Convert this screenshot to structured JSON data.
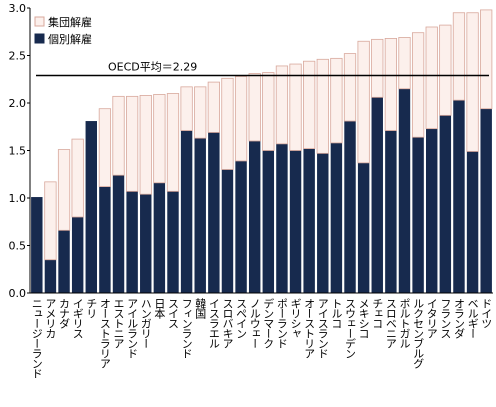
{
  "chart_data": {
    "type": "stacked_bar",
    "categories": [
      "ニュージーランド",
      "アメリカ",
      "カナダ",
      "イギリス",
      "チリ",
      "オーストラリア",
      "エストニア",
      "アイルランド",
      "ハンガリー",
      "日本",
      "スイス",
      "フィンランド",
      "韓国",
      "イスラエル",
      "スロバキア",
      "スペイン",
      "ノルウェー",
      "デンマーク",
      "ポーランド",
      "ギリシャ",
      "オーストリア",
      "アイスランド",
      "トルコ",
      "スウェーデン",
      "メキシコ",
      "チェコ",
      "スロベニア",
      "ポルトガル",
      "ルクセンブルグ",
      "イタリア",
      "フランス",
      "オランダ",
      "ベルギー",
      "ドイツ"
    ],
    "series": [
      {
        "name": "個別解雇",
        "color": "#172a4e",
        "values": [
          1.01,
          0.35,
          0.66,
          0.8,
          1.81,
          1.12,
          1.24,
          1.07,
          1.04,
          1.16,
          1.07,
          1.71,
          1.63,
          1.69,
          1.3,
          1.39,
          1.6,
          1.5,
          1.57,
          1.5,
          1.52,
          1.47,
          1.58,
          1.81,
          1.37,
          2.06,
          1.71,
          2.15,
          1.64,
          1.73,
          1.87,
          2.03,
          1.49,
          1.94
        ]
      },
      {
        "name": "集団解雇",
        "color": "#fcf0ec",
        "values": [
          0,
          0.82,
          0.85,
          0.82,
          0,
          0.82,
          0.83,
          1.0,
          1.04,
          0.93,
          1.03,
          0.46,
          0.54,
          0.53,
          0.96,
          0.89,
          0.71,
          0.82,
          0.82,
          0.91,
          0.92,
          0.99,
          0.89,
          0.71,
          1.28,
          0.61,
          0.97,
          0.54,
          1.1,
          1.07,
          0.95,
          0.92,
          1.46,
          1.04
        ]
      }
    ],
    "reference_line": {
      "value": 2.29,
      "label": "OECD平均＝2.29"
    },
    "ylim": [
      0,
      3
    ],
    "yticks": [
      {
        "value": 0,
        "label": "0.0"
      },
      {
        "value": 0.5,
        "label": "0.5"
      },
      {
        "value": 1,
        "label": "1.0"
      },
      {
        "value": 1.5,
        "label": "1.5"
      },
      {
        "value": 2,
        "label": "2.0"
      },
      {
        "value": 2.5,
        "label": "2.5"
      },
      {
        "value": 3,
        "label": "3.0"
      }
    ],
    "legend": "top-left"
  }
}
